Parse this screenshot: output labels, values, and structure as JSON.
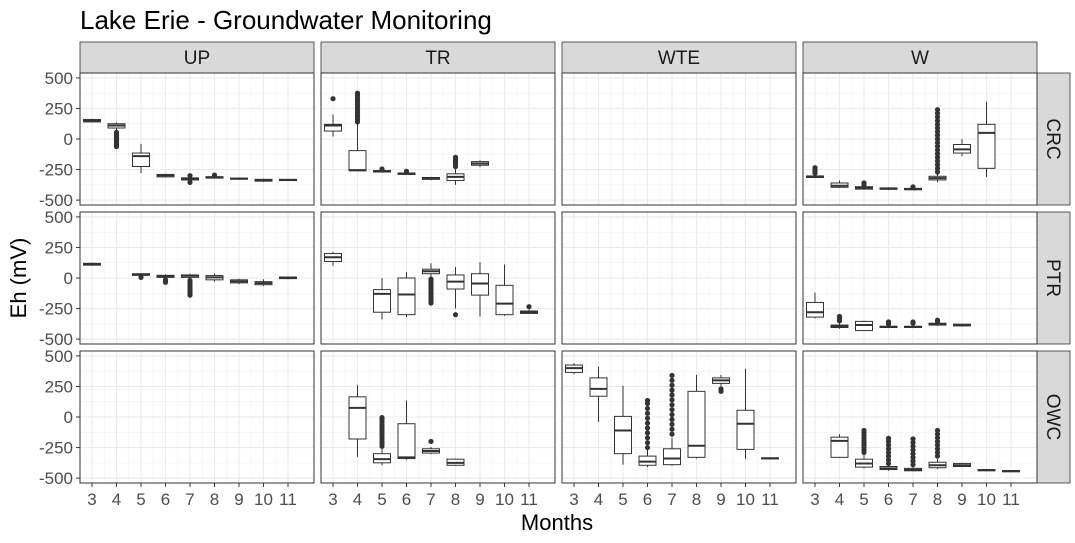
{
  "chart_data": {
    "type": "box",
    "title": "Lake Erie - Groundwater Monitoring",
    "xlabel": "Months",
    "ylabel": "Eh (mV)",
    "x_ticks": [
      "3",
      "4",
      "5",
      "6",
      "7",
      "8",
      "9",
      "10",
      "11"
    ],
    "y_ticks": [
      "500",
      "250",
      "0",
      "-250",
      "-500"
    ],
    "y_tick_values": [
      500,
      250,
      0,
      -250,
      -500
    ],
    "ylim": [
      -540,
      540
    ],
    "grid": true,
    "columns": [
      "UP",
      "TR",
      "WTE",
      "W"
    ],
    "rows": [
      "CRC",
      "PTR",
      "OWC"
    ],
    "panels": [
      {
        "row": "CRC",
        "col": "UP",
        "boxes": [
          {
            "x": 3,
            "q1": 140,
            "median": 148,
            "q3": 160,
            "lo": 135,
            "hi": 165,
            "outliers": []
          },
          {
            "x": 4,
            "q1": 90,
            "median": 110,
            "q3": 125,
            "lo": 70,
            "hi": 135,
            "outliers": [
              55,
              45,
              35,
              25,
              15,
              5,
              -5,
              -15,
              -25,
              -35,
              -45,
              -55,
              -62
            ]
          },
          {
            "x": 5,
            "q1": -225,
            "median": -140,
            "q3": -115,
            "lo": -280,
            "hi": -40,
            "outliers": []
          },
          {
            "x": 6,
            "q1": -310,
            "median": -298,
            "q3": -290,
            "lo": -315,
            "hi": -285,
            "outliers": []
          },
          {
            "x": 7,
            "q1": -335,
            "median": -325,
            "q3": -318,
            "lo": -345,
            "hi": -312,
            "outliers": [
              -300,
              -355
            ]
          },
          {
            "x": 8,
            "q1": -320,
            "median": -315,
            "q3": -308,
            "lo": -325,
            "hi": -303,
            "outliers": [
              -295
            ]
          },
          {
            "x": 9,
            "q1": -328,
            "median": -325,
            "q3": -320,
            "lo": -332,
            "hi": -318,
            "outliers": []
          },
          {
            "x": 10,
            "q1": -345,
            "median": -338,
            "q3": -330,
            "lo": -350,
            "hi": -325,
            "outliers": []
          },
          {
            "x": 11,
            "q1": -340,
            "median": -335,
            "q3": -330,
            "lo": -342,
            "hi": -328,
            "outliers": []
          }
        ]
      },
      {
        "row": "CRC",
        "col": "TR",
        "boxes": [
          {
            "x": 3,
            "q1": 65,
            "median": 110,
            "q3": 120,
            "lo": 20,
            "hi": 200,
            "outliers": [
              330
            ]
          },
          {
            "x": 4,
            "q1": -260,
            "median": -255,
            "q3": -95,
            "lo": -265,
            "hi": 130,
            "outliers": [
              140,
              160,
              180,
              200,
              220,
              240,
              260,
              280,
              300,
              320,
              340,
              360,
              375
            ]
          },
          {
            "x": 5,
            "q1": -270,
            "median": -265,
            "q3": -258,
            "lo": -275,
            "hi": -252,
            "outliers": [
              -245
            ]
          },
          {
            "x": 6,
            "q1": -290,
            "median": -283,
            "q3": -278,
            "lo": -295,
            "hi": -272,
            "outliers": [
              -265
            ]
          },
          {
            "x": 7,
            "q1": -330,
            "median": -322,
            "q3": -315,
            "lo": -338,
            "hi": -310,
            "outliers": []
          },
          {
            "x": 8,
            "q1": -340,
            "median": -310,
            "q3": -285,
            "lo": -375,
            "hi": -245,
            "outliers": [
              -225,
              -205,
              -190,
              -175,
              -160,
              -150
            ]
          },
          {
            "x": 9,
            "q1": -215,
            "median": -200,
            "q3": -185,
            "lo": -230,
            "hi": -175,
            "outliers": []
          }
        ]
      },
      {
        "row": "CRC",
        "col": "WTE",
        "boxes": []
      },
      {
        "row": "CRC",
        "col": "W",
        "boxes": [
          {
            "x": 3,
            "q1": -315,
            "median": -310,
            "q3": -302,
            "lo": -320,
            "hi": -292,
            "outliers": [
              -280,
              -265,
              -250,
              -235
            ]
          },
          {
            "x": 4,
            "q1": -395,
            "median": -382,
            "q3": -360,
            "lo": -400,
            "hi": -340,
            "outliers": []
          },
          {
            "x": 5,
            "q1": -410,
            "median": -400,
            "q3": -390,
            "lo": -415,
            "hi": -385,
            "outliers": [
              -375,
              -360
            ]
          },
          {
            "x": 6,
            "q1": -412,
            "median": -405,
            "q3": -400,
            "lo": -418,
            "hi": -395,
            "outliers": []
          },
          {
            "x": 7,
            "q1": -415,
            "median": -410,
            "q3": -404,
            "lo": -420,
            "hi": -400,
            "outliers": [
              -392
            ]
          },
          {
            "x": 8,
            "q1": -335,
            "median": -320,
            "q3": -305,
            "lo": -355,
            "hi": -290,
            "outliers": [
              -270,
              -240,
              -210,
              -180,
              -150,
              -120,
              -90,
              -60,
              -30,
              0,
              30,
              60,
              90,
              120,
              150,
              180,
              210,
              240
            ]
          },
          {
            "x": 9,
            "q1": -115,
            "median": -85,
            "q3": -45,
            "lo": -140,
            "hi": 0,
            "outliers": []
          },
          {
            "x": 10,
            "q1": -240,
            "median": 50,
            "q3": 120,
            "lo": -310,
            "hi": 305,
            "outliers": []
          }
        ]
      },
      {
        "row": "PTR",
        "col": "UP",
        "boxes": [
          {
            "x": 3,
            "q1": 105,
            "median": 112,
            "q3": 120,
            "lo": 100,
            "hi": 125,
            "outliers": []
          },
          {
            "x": 5,
            "q1": 22,
            "median": 28,
            "q3": 35,
            "lo": 18,
            "hi": 38,
            "outliers": [
              5
            ]
          },
          {
            "x": 6,
            "q1": 5,
            "median": 15,
            "q3": 22,
            "lo": -5,
            "hi": 30,
            "outliers": [
              -15,
              -25,
              -35
            ]
          },
          {
            "x": 7,
            "q1": 5,
            "median": 18,
            "q3": 25,
            "lo": -5,
            "hi": 35,
            "outliers": [
              -20,
              -40,
              -60,
              -80,
              -100,
              -120,
              -140
            ]
          },
          {
            "x": 8,
            "q1": -15,
            "median": 5,
            "q3": 20,
            "lo": -30,
            "hi": 35,
            "outliers": []
          },
          {
            "x": 9,
            "q1": -40,
            "median": -28,
            "q3": -15,
            "lo": -50,
            "hi": -5,
            "outliers": []
          },
          {
            "x": 10,
            "q1": -55,
            "median": -42,
            "q3": -30,
            "lo": -65,
            "hi": -10,
            "outliers": []
          },
          {
            "x": 11,
            "q1": -5,
            "median": 2,
            "q3": 8,
            "lo": -10,
            "hi": 12,
            "outliers": []
          }
        ]
      },
      {
        "row": "PTR",
        "col": "TR",
        "boxes": [
          {
            "x": 3,
            "q1": 135,
            "median": 170,
            "q3": 200,
            "lo": 100,
            "hi": 215,
            "outliers": []
          },
          {
            "x": 5,
            "q1": -280,
            "median": -130,
            "q3": -95,
            "lo": -340,
            "hi": 0,
            "outliers": []
          },
          {
            "x": 6,
            "q1": -300,
            "median": -135,
            "q3": 0,
            "lo": -320,
            "hi": 50,
            "outliers": []
          },
          {
            "x": 7,
            "q1": 35,
            "median": 55,
            "q3": 72,
            "lo": 5,
            "hi": 120,
            "outliers": [
              -10,
              -30,
              -50,
              -70,
              -90,
              -110,
              -130,
              -150,
              -170,
              -190,
              -205
            ]
          },
          {
            "x": 8,
            "q1": -90,
            "median": -30,
            "q3": 25,
            "lo": -250,
            "hi": 90,
            "outliers": [
              -300
            ]
          },
          {
            "x": 9,
            "q1": -140,
            "median": -45,
            "q3": 35,
            "lo": -315,
            "hi": 130,
            "outliers": []
          },
          {
            "x": 10,
            "q1": -300,
            "median": -210,
            "q3": -60,
            "lo": -310,
            "hi": 110,
            "outliers": []
          },
          {
            "x": 11,
            "q1": -290,
            "median": -280,
            "q3": -270,
            "lo": -295,
            "hi": -260,
            "outliers": [
              -235
            ]
          }
        ]
      },
      {
        "row": "PTR",
        "col": "WTE",
        "boxes": []
      },
      {
        "row": "PTR",
        "col": "W",
        "boxes": [
          {
            "x": 3,
            "q1": -320,
            "median": -280,
            "q3": -200,
            "lo": -330,
            "hi": -120,
            "outliers": []
          },
          {
            "x": 4,
            "q1": -405,
            "median": -395,
            "q3": -385,
            "lo": -415,
            "hi": -365,
            "outliers": [
              -350,
              -330,
              -315
            ]
          },
          {
            "x": 5,
            "q1": -430,
            "median": -385,
            "q3": -355,
            "lo": -435,
            "hi": -350,
            "outliers": []
          },
          {
            "x": 6,
            "q1": -405,
            "median": -400,
            "q3": -395,
            "lo": -410,
            "hi": -390,
            "outliers": [
              -375,
              -360
            ]
          },
          {
            "x": 7,
            "q1": -405,
            "median": -400,
            "q3": -395,
            "lo": -410,
            "hi": -390,
            "outliers": [
              -370,
              -360
            ]
          },
          {
            "x": 8,
            "q1": -385,
            "median": -378,
            "q3": -370,
            "lo": -392,
            "hi": -365,
            "outliers": [
              -355,
              -345
            ]
          },
          {
            "x": 9,
            "q1": -392,
            "median": -385,
            "q3": -378,
            "lo": -398,
            "hi": -374,
            "outliers": []
          }
        ]
      },
      {
        "row": "OWC",
        "col": "UP",
        "boxes": []
      },
      {
        "row": "OWC",
        "col": "TR",
        "boxes": [
          {
            "x": 4,
            "q1": -180,
            "median": 75,
            "q3": 165,
            "lo": -325,
            "hi": 260,
            "outliers": []
          },
          {
            "x": 5,
            "q1": -375,
            "median": -345,
            "q3": -300,
            "lo": -395,
            "hi": -255,
            "outliers": [
              -240,
              -220,
              -200,
              -180,
              -160,
              -140,
              -120,
              -100,
              -80,
              -60,
              -40,
              -20,
              -5
            ]
          },
          {
            "x": 6,
            "q1": -340,
            "median": -330,
            "q3": -55,
            "lo": -350,
            "hi": 135,
            "outliers": []
          },
          {
            "x": 7,
            "q1": -295,
            "median": -278,
            "q3": -260,
            "lo": -305,
            "hi": -245,
            "outliers": [
              -200
            ]
          },
          {
            "x": 8,
            "q1": -395,
            "median": -375,
            "q3": -345,
            "lo": -400,
            "hi": -340,
            "outliers": []
          }
        ]
      },
      {
        "row": "OWC",
        "col": "WTE",
        "boxes": [
          {
            "x": 3,
            "q1": 365,
            "median": 400,
            "q3": 425,
            "lo": 350,
            "hi": 440,
            "outliers": []
          },
          {
            "x": 4,
            "q1": 170,
            "median": 230,
            "q3": 320,
            "lo": -40,
            "hi": 410,
            "outliers": []
          },
          {
            "x": 5,
            "q1": -300,
            "median": -110,
            "q3": 5,
            "lo": -390,
            "hi": 255,
            "outliers": []
          },
          {
            "x": 6,
            "q1": -395,
            "median": -365,
            "q3": -320,
            "lo": -410,
            "hi": -270,
            "outliers": [
              -250,
              -210,
              -170,
              -130,
              -90,
              -50,
              -10,
              30,
              70,
              110,
              135
            ]
          },
          {
            "x": 7,
            "q1": -390,
            "median": -340,
            "q3": -260,
            "lo": -400,
            "hi": -170,
            "outliers": [
              -140,
              -100,
              -60,
              -20,
              20,
              60,
              100,
              140,
              180,
              220,
              260,
              300,
              340
            ]
          },
          {
            "x": 8,
            "q1": -330,
            "median": -235,
            "q3": 210,
            "lo": -340,
            "hi": 345,
            "outliers": []
          },
          {
            "x": 9,
            "q1": 275,
            "median": 300,
            "q3": 320,
            "lo": 255,
            "hi": 345,
            "outliers": [
              230,
              210
            ]
          },
          {
            "x": 10,
            "q1": -265,
            "median": -55,
            "q3": 55,
            "lo": -345,
            "hi": 395,
            "outliers": []
          },
          {
            "x": 11,
            "q1": -340,
            "median": -338,
            "q3": -335,
            "lo": -342,
            "hi": -333,
            "outliers": []
          }
        ]
      },
      {
        "row": "OWC",
        "col": "W",
        "boxes": [
          {
            "x": 4,
            "q1": -330,
            "median": -195,
            "q3": -165,
            "lo": -335,
            "hi": -140,
            "outliers": []
          },
          {
            "x": 5,
            "q1": -410,
            "median": -380,
            "q3": -345,
            "lo": -420,
            "hi": -310,
            "outliers": [
              -290,
              -270,
              -250,
              -230,
              -210,
              -190,
              -170,
              -150,
              -130,
              -110
            ]
          },
          {
            "x": 6,
            "q1": -430,
            "median": -420,
            "q3": -405,
            "lo": -440,
            "hi": -395,
            "outliers": [
              -380,
              -350,
              -320,
              -290,
              -260,
              -230,
              -200,
              -175
            ]
          },
          {
            "x": 7,
            "q1": -440,
            "median": -432,
            "q3": -420,
            "lo": -445,
            "hi": -410,
            "outliers": [
              -390,
              -360,
              -330,
              -300,
              -270,
              -240,
              -210,
              -180
            ]
          },
          {
            "x": 8,
            "q1": -415,
            "median": -395,
            "q3": -370,
            "lo": -425,
            "hi": -345,
            "outliers": [
              -320,
              -290,
              -260,
              -230,
              -200,
              -170,
              -140,
              -110
            ]
          },
          {
            "x": 9,
            "q1": -405,
            "median": -395,
            "q3": -380,
            "lo": -410,
            "hi": -375,
            "outliers": []
          },
          {
            "x": 10,
            "q1": -440,
            "median": -435,
            "q3": -430,
            "lo": -445,
            "hi": -425,
            "outliers": []
          },
          {
            "x": 11,
            "q1": -448,
            "median": -443,
            "q3": -438,
            "lo": -450,
            "hi": -435,
            "outliers": []
          }
        ]
      }
    ]
  }
}
